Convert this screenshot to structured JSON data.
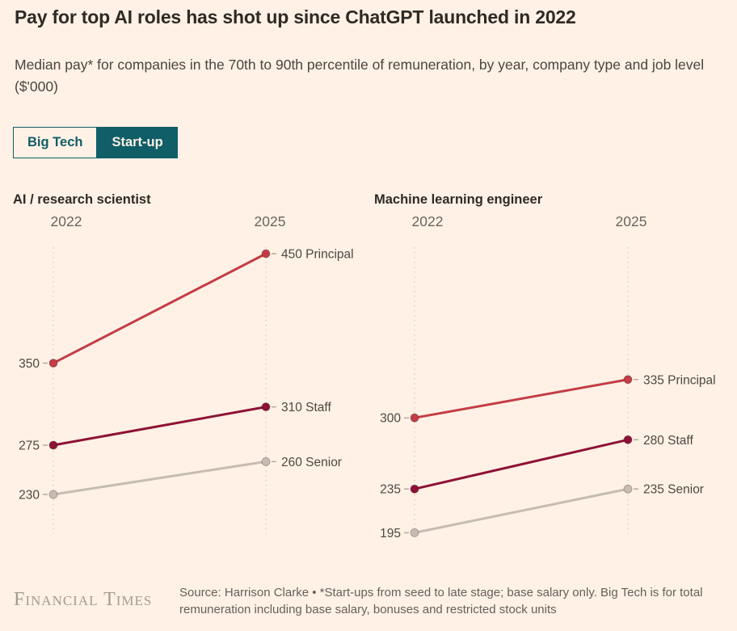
{
  "page": {
    "title": "Pay for top AI roles has shot up since ChatGPT launched in 2022",
    "subtitle": "Median pay* for companies in the 70th to 90th percentile of remuneration, by year, company type and job level ($'000)"
  },
  "toggle": {
    "options": [
      {
        "label": "Big Tech",
        "selected": false
      },
      {
        "label": "Start-up",
        "selected": true
      }
    ]
  },
  "colors": {
    "background": "#FFF1E5",
    "teal": "#0F5E68",
    "principal": "#C33D46",
    "staff": "#8E1236",
    "senior": "#C6BCB3",
    "gridline": "#DCCFC2",
    "tick": "#B5ABA1",
    "label_text": "#4D4843"
  },
  "chart_data": [
    {
      "type": "line",
      "title": "AI / research scientist",
      "x": [
        "2022",
        "2025"
      ],
      "ylabel": "$'000",
      "series": [
        {
          "name": "Principal",
          "values": [
            350,
            450
          ],
          "color": "#C33D46"
        },
        {
          "name": "Staff",
          "values": [
            275,
            310
          ],
          "color": "#8E1236"
        },
        {
          "name": "Senior",
          "values": [
            230,
            260
          ],
          "color": "#C6BCB3"
        }
      ]
    },
    {
      "type": "line",
      "title": "Machine learning engineer",
      "x": [
        "2022",
        "2025"
      ],
      "ylabel": "$'000",
      "series": [
        {
          "name": "Principal",
          "values": [
            300,
            335
          ],
          "color": "#C33D46"
        },
        {
          "name": "Staff",
          "values": [
            235,
            280
          ],
          "color": "#8E1236"
        },
        {
          "name": "Senior",
          "values": [
            195,
            235
          ],
          "color": "#C6BCB3"
        }
      ]
    }
  ],
  "footer": {
    "logo": "Financial Times",
    "source": "Source: Harrison Clarke • *Start-ups from seed to late stage; base salary only. Big Tech is for total remuneration including base salary, bonuses and restricted stock units"
  }
}
